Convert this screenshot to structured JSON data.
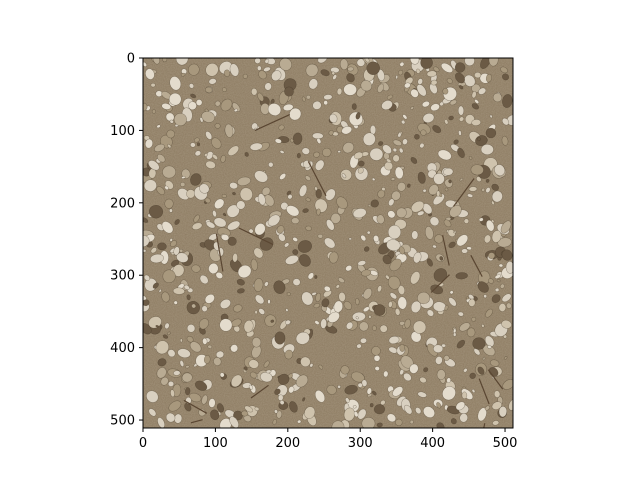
{
  "figure": {
    "image_description_icon": "gravel-texture-image",
    "colors": {
      "background": "#ffffff",
      "axes_frame": "#000000",
      "gravel_base": "#8c7a60",
      "stone_light": "#d9d0c0",
      "stone_mid": "#b9ab93",
      "stone_dark": "#6b5a45"
    }
  },
  "chart_data": {
    "type": "image",
    "title": "",
    "xlabel": "",
    "ylabel": "",
    "xlim": [
      0,
      511
    ],
    "ylim": [
      511,
      0
    ],
    "xticks": [
      0,
      100,
      200,
      300,
      400,
      500
    ],
    "yticks": [
      0,
      100,
      200,
      300,
      400,
      500
    ],
    "xtick_labels": [
      "0",
      "100",
      "200",
      "300",
      "400",
      "500"
    ],
    "ytick_labels": [
      "0",
      "100",
      "200",
      "300",
      "400",
      "500"
    ],
    "grid": false,
    "legend": "none"
  }
}
